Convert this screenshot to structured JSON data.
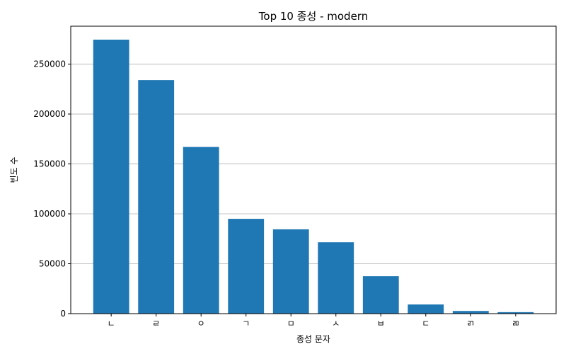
{
  "chart_data": {
    "type": "bar",
    "title": "Top 10 종성 - modern",
    "xlabel": "종성 문자",
    "ylabel": "빈도 수",
    "categories": [
      "ㄴ",
      "ㄹ",
      "ㅇ",
      "ㄱ",
      "ㅁ",
      "ㅅ",
      "ㅂ",
      "ㄷ",
      "ㄺ",
      "ㄻ"
    ],
    "values": [
      274500,
      234000,
      167000,
      95000,
      84500,
      71500,
      37500,
      9200,
      2700,
      1500
    ],
    "ylim": [
      0,
      288000
    ],
    "yticks": [
      0,
      50000,
      100000,
      150000,
      200000,
      250000
    ],
    "ytick_labels": [
      "0",
      "50000",
      "100000",
      "150000",
      "200000",
      "250000"
    ],
    "grid": "y",
    "bar_color": "#1f77b4"
  }
}
